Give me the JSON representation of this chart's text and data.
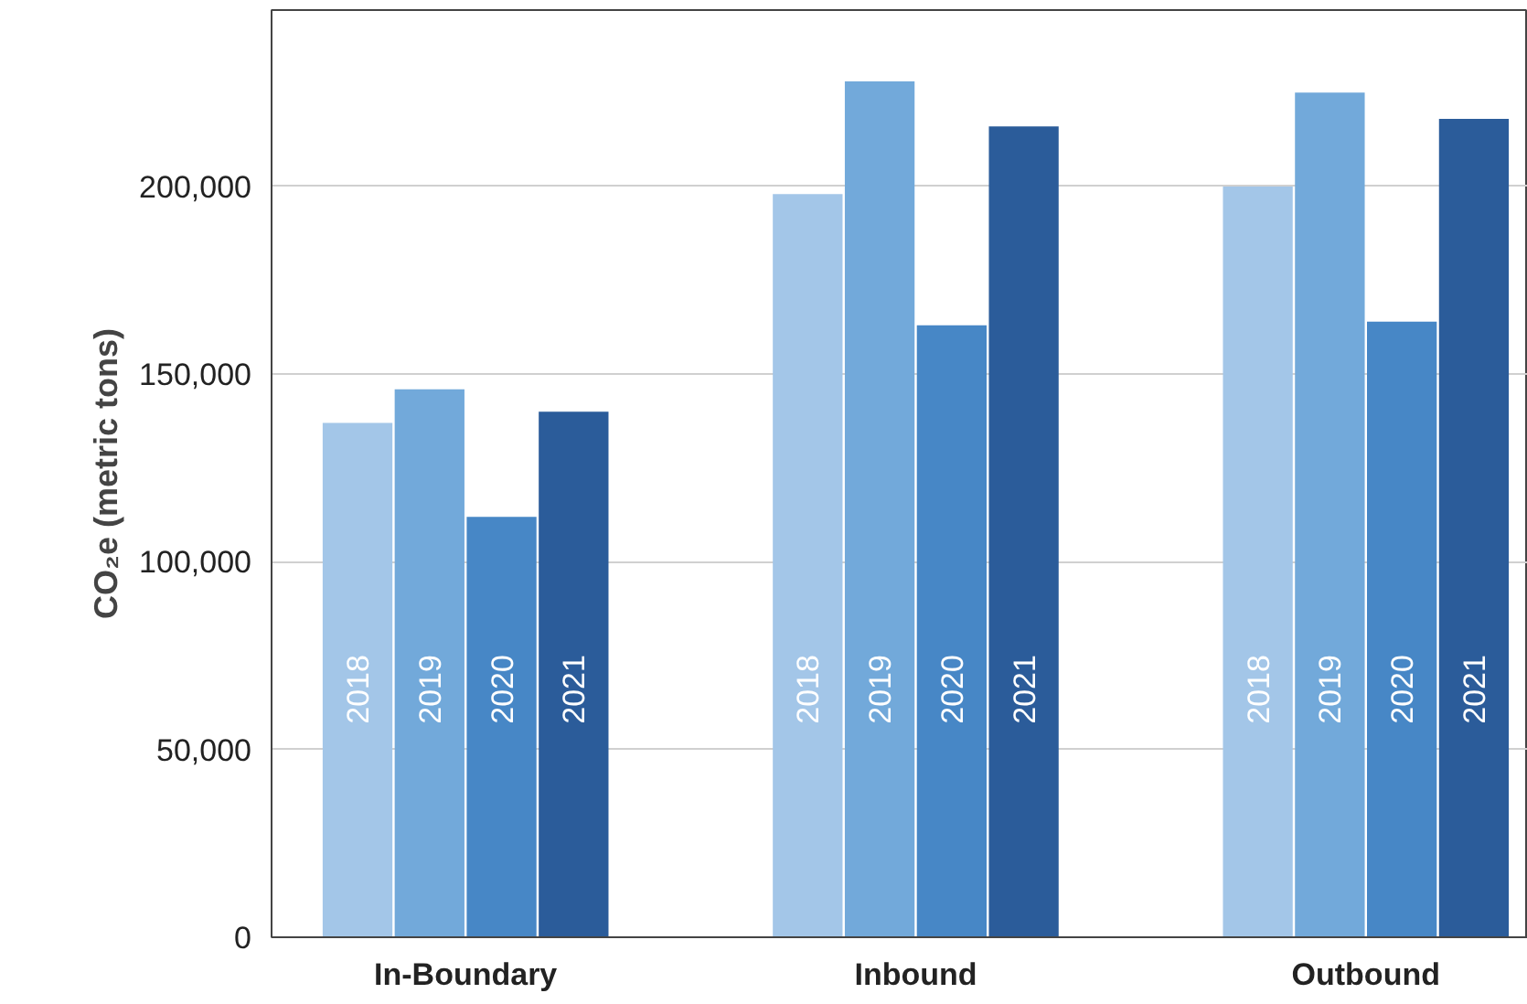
{
  "chart_data": {
    "type": "bar",
    "ylabel": "CO₂e (metric tons)",
    "categories": [
      "In-Boundary",
      "Inbound",
      "Outbound"
    ],
    "series": [
      {
        "name": "2018",
        "color": "#a3c6e8",
        "values": [
          137000,
          198000,
          200000
        ]
      },
      {
        "name": "2019",
        "color": "#72a9da",
        "values": [
          146000,
          228000,
          225000
        ]
      },
      {
        "name": "2020",
        "color": "#4787c6",
        "values": [
          112000,
          163000,
          164000
        ]
      },
      {
        "name": "2021",
        "color": "#2b5c9a",
        "values": [
          140000,
          216000,
          218000
        ]
      }
    ],
    "ylim": [
      0,
      247000
    ],
    "yticks": [
      0,
      {
        "value": 50000,
        "label": "50,000"
      },
      {
        "value": 100000,
        "label": "100,000"
      },
      {
        "value": 150000,
        "label": "150,000"
      },
      {
        "value": 200000,
        "label": "200,000"
      }
    ],
    "grid": "y"
  }
}
